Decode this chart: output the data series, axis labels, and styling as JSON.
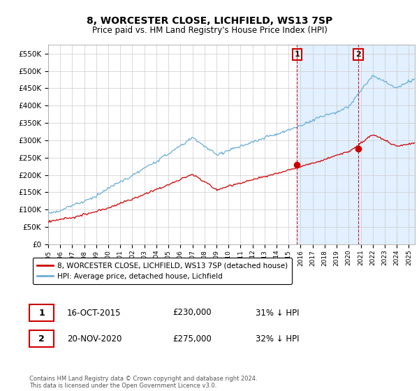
{
  "title": "8, WORCESTER CLOSE, LICHFIELD, WS13 7SP",
  "subtitle": "Price paid vs. HM Land Registry's House Price Index (HPI)",
  "hpi_color": "#6baed6",
  "price_color": "#cc0000",
  "annotation_box_color": "#cc0000",
  "shaded_color": "#ddeeff",
  "ylim": [
    0,
    575000
  ],
  "yticks": [
    0,
    50000,
    100000,
    150000,
    200000,
    250000,
    300000,
    350000,
    400000,
    450000,
    500000,
    550000
  ],
  "legend_label_price": "8, WORCESTER CLOSE, LICHFIELD, WS13 7SP (detached house)",
  "legend_label_hpi": "HPI: Average price, detached house, Lichfield",
  "annotation1_date": "16-OCT-2015",
  "annotation1_price": "£230,000",
  "annotation1_pct": "31% ↓ HPI",
  "annotation2_date": "20-NOV-2020",
  "annotation2_price": "£275,000",
  "annotation2_pct": "32% ↓ HPI",
  "footnote": "Contains HM Land Registry data © Crown copyright and database right 2024.\nThis data is licensed under the Open Government Licence v3.0.",
  "xstart_year": 1995,
  "xend_year": 2025,
  "sale1_year": 2015.75,
  "sale1_price": 230000,
  "sale2_year": 2020.83,
  "sale2_price": 275000
}
